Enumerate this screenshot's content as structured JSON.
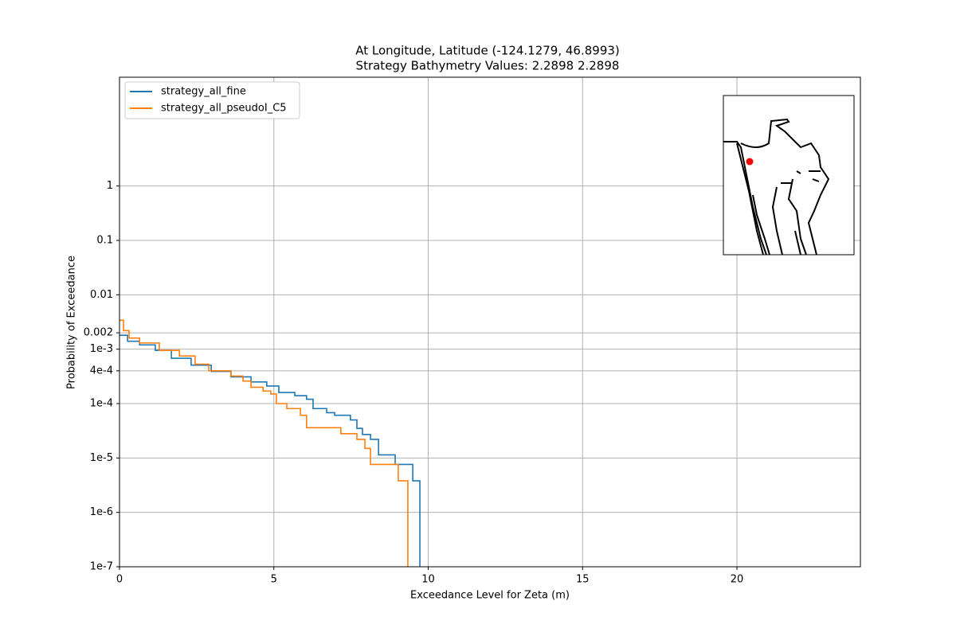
{
  "chart_data": {
    "type": "step",
    "title": "At Longitude, Latitude (-124.1279,  46.8993)",
    "subtitle": "Strategy Bathymetry Values:    2.2898    2.2898",
    "xlabel": "Exceedance Level for Zeta (m)",
    "ylabel": "Probability of Exceedance",
    "xlim": [
      0,
      24
    ],
    "xticks": [
      0,
      5,
      10,
      15,
      20
    ],
    "ylim": [
      1e-07,
      100
    ],
    "yscale": "log",
    "yticks": [
      {
        "value": 1e-07,
        "label": "1e-7"
      },
      {
        "value": 1e-06,
        "label": "1e-6"
      },
      {
        "value": 1e-05,
        "label": "1e-5"
      },
      {
        "value": 0.0001,
        "label": "1e-4"
      },
      {
        "value": 0.0004,
        "label": "4e-4"
      },
      {
        "value": 0.001,
        "label": "1e-3"
      },
      0.002,
      0.01,
      0.1,
      1
    ],
    "grid": true,
    "legend": "upper left",
    "series": [
      {
        "name": "strategy_all_fine",
        "color": "#1f77b4",
        "x": [
          0,
          0.26,
          0.65,
          1.16,
          1.68,
          2.32,
          2.97,
          3.61,
          4.26,
          4.77,
          5.16,
          5.68,
          6.06,
          6.27,
          6.71,
          6.97,
          7.48,
          7.69,
          7.87,
          8.13,
          8.39,
          8.93,
          9.5,
          9.73
        ],
        "values": [
          0.0018,
          0.0014,
          0.0012,
          0.00095,
          0.00068,
          0.00051,
          0.00039,
          0.00031,
          0.00025,
          0.00021,
          0.00016,
          0.00014,
          0.00012,
          8.1e-05,
          6.8e-05,
          6.1e-05,
          5e-05,
          3.5e-05,
          2.7e-05,
          2.2e-05,
          1.14e-05,
          7.6e-06,
          3.8e-06,
          0
        ]
      },
      {
        "name": "strategy_all_pseudoI_C5",
        "color": "#ff7f0e",
        "x": [
          0,
          0.13,
          0.31,
          0.65,
          1.29,
          1.94,
          2.45,
          2.89,
          3.61,
          4.0,
          4.26,
          4.65,
          4.9,
          5.08,
          5.42,
          5.86,
          6.06,
          7.17,
          7.69,
          7.95,
          8.13,
          9.03,
          9.34
        ],
        "values": [
          0.0034,
          0.0022,
          0.0016,
          0.0013,
          0.00095,
          0.00075,
          0.00053,
          0.0004,
          0.00032,
          0.00026,
          0.0002,
          0.00017,
          0.00015,
          0.0001,
          8.1e-05,
          6.1e-05,
          3.6e-05,
          2.8e-05,
          2.2e-05,
          1.5e-05,
          7.6e-06,
          3.8e-06,
          0
        ]
      }
    ]
  }
}
